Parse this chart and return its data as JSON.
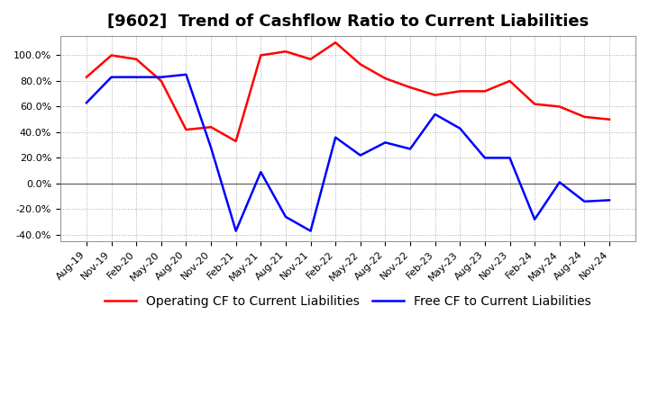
{
  "title": "[9602]  Trend of Cashflow Ratio to Current Liabilities",
  "xlabel": "",
  "ylabel": "",
  "ylim": [
    -0.45,
    1.15
  ],
  "yticks": [
    -0.4,
    -0.2,
    0.0,
    0.2,
    0.4,
    0.6,
    0.8,
    1.0
  ],
  "ytick_labels": [
    "-40.0%",
    "-20.0%",
    "0.0%",
    "20.0%",
    "40.0%",
    "60.0%",
    "80.0%",
    "100.0%"
  ],
  "x_labels": [
    "Aug-19",
    "Nov-19",
    "Feb-20",
    "May-20",
    "Aug-20",
    "Nov-20",
    "Feb-21",
    "May-21",
    "Aug-21",
    "Nov-21",
    "Feb-22",
    "May-22",
    "Aug-22",
    "Nov-22",
    "Feb-23",
    "May-23",
    "Aug-23",
    "Nov-23",
    "Feb-24",
    "May-24",
    "Aug-24",
    "Nov-24"
  ],
  "operating_cf": [
    0.83,
    1.0,
    0.97,
    0.8,
    0.42,
    0.44,
    0.33,
    1.0,
    1.03,
    0.97,
    1.1,
    0.93,
    0.82,
    0.75,
    0.69,
    0.72,
    0.72,
    0.8,
    0.62,
    0.6,
    0.52,
    0.5
  ],
  "free_cf": [
    0.63,
    0.83,
    0.83,
    0.83,
    0.85,
    0.28,
    -0.37,
    0.09,
    -0.26,
    -0.37,
    0.36,
    0.22,
    0.32,
    0.27,
    0.54,
    0.43,
    0.2,
    0.2,
    -0.28,
    0.01,
    -0.14,
    -0.13
  ],
  "operating_color": "#FF0000",
  "free_color": "#0000FF",
  "bg_color": "#FFFFFF",
  "plot_bg_color": "#FFFFFF",
  "grid_color": "#AAAAAA",
  "title_fontsize": 13,
  "legend_fontsize": 10,
  "tick_fontsize": 8,
  "line_width": 1.8
}
